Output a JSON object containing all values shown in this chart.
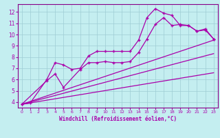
{
  "xlabel": "Windchill (Refroidissement éolien,°C)",
  "bg_color": "#c4eef0",
  "grid_color": "#9eccd4",
  "line_color": "#aa00aa",
  "spine_color": "#880088",
  "xlim": [
    -0.5,
    23.5
  ],
  "ylim": [
    3.5,
    12.7
  ],
  "xticks": [
    0,
    1,
    2,
    3,
    4,
    5,
    6,
    7,
    8,
    9,
    10,
    11,
    12,
    13,
    14,
    15,
    16,
    17,
    18,
    19,
    20,
    21,
    22,
    23
  ],
  "yticks": [
    4,
    5,
    6,
    7,
    8,
    9,
    10,
    11,
    12
  ],
  "series1_x": [
    0,
    1,
    3,
    4,
    5,
    6,
    7,
    8,
    9,
    10,
    11,
    12,
    13,
    14,
    15,
    16,
    17,
    18,
    19,
    20,
    21,
    22,
    23
  ],
  "series1_y": [
    3.8,
    3.9,
    6.0,
    7.5,
    7.3,
    6.9,
    7.0,
    8.1,
    8.5,
    8.5,
    8.5,
    8.5,
    8.5,
    9.5,
    11.5,
    12.3,
    11.9,
    11.7,
    10.8,
    10.8,
    10.3,
    10.5,
    9.6
  ],
  "series2_x": [
    0,
    3,
    4,
    5,
    7,
    8,
    9,
    10,
    11,
    12,
    13,
    14,
    15,
    16,
    17,
    18,
    19,
    20,
    21,
    22,
    23
  ],
  "series2_y": [
    3.8,
    5.9,
    6.5,
    5.3,
    6.9,
    7.5,
    7.5,
    7.6,
    7.5,
    7.5,
    7.6,
    8.4,
    9.6,
    10.9,
    11.5,
    10.8,
    10.9,
    10.8,
    10.3,
    10.4,
    9.6
  ],
  "trend1_x": [
    0,
    23
  ],
  "trend1_y": [
    3.8,
    9.5
  ],
  "trend2_x": [
    0,
    23
  ],
  "trend2_y": [
    3.8,
    8.3
  ],
  "trend3_x": [
    0,
    23
  ],
  "trend3_y": [
    3.8,
    6.6
  ]
}
